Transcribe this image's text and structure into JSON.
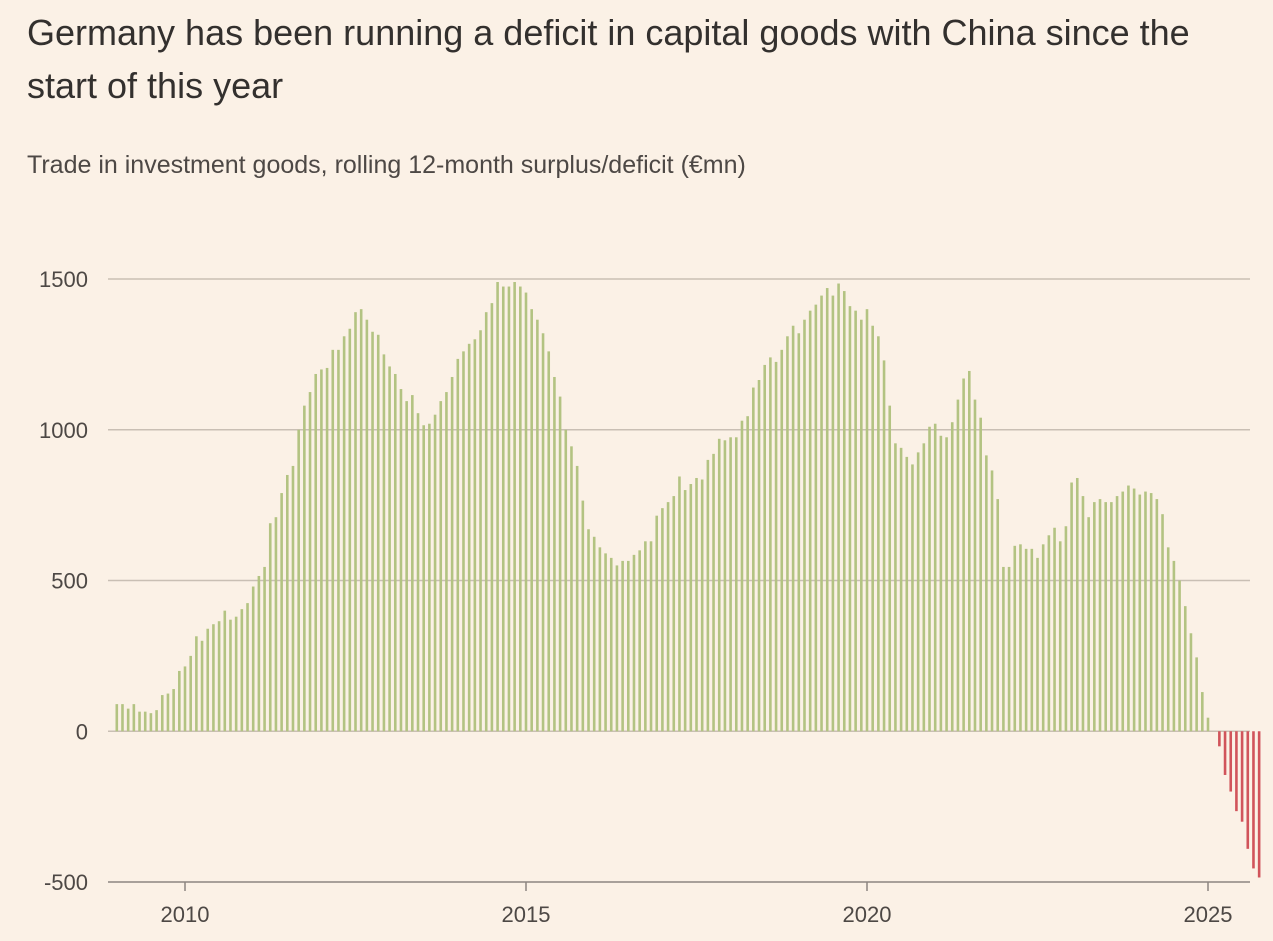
{
  "title": "Germany has been running a deficit in capital goods with China since the start of this year",
  "subtitle": "Trade in investment goods, rolling 12-month surplus/deficit (€mn)",
  "colors": {
    "positive": "#b3c382",
    "negative": "#d1545b",
    "gridline": "#c9bfb4",
    "axis": "#8c8580",
    "background": "#fbf1e6"
  },
  "chart_data": {
    "type": "bar",
    "title": "Germany has been running a deficit in capital goods with China since the start of this year",
    "subtitle": "Trade in investment goods, rolling 12-month surplus/deficit (€mn)",
    "x_start": "2009-01",
    "x_frequency": "monthly",
    "ylim": [
      -500,
      1500
    ],
    "yticks": [
      1500,
      1000,
      500,
      0,
      -500
    ],
    "ytick_labels": [
      "1500",
      "1000",
      "500",
      "0",
      "-500"
    ],
    "xticks": [
      "2010",
      "2015",
      "2020",
      "2025"
    ],
    "grid": true,
    "values": [
      90,
      90,
      75,
      90,
      65,
      65,
      60,
      70,
      120,
      125,
      140,
      200,
      215,
      250,
      315,
      300,
      340,
      355,
      365,
      400,
      370,
      380,
      405,
      425,
      480,
      515,
      545,
      690,
      710,
      790,
      850,
      880,
      1000,
      1080,
      1125,
      1185,
      1200,
      1205,
      1265,
      1265,
      1310,
      1335,
      1390,
      1400,
      1365,
      1325,
      1315,
      1250,
      1210,
      1185,
      1135,
      1095,
      1115,
      1055,
      1015,
      1020,
      1050,
      1095,
      1125,
      1175,
      1235,
      1260,
      1285,
      1300,
      1330,
      1390,
      1420,
      1490,
      1475,
      1475,
      1490,
      1475,
      1455,
      1400,
      1365,
      1320,
      1260,
      1175,
      1110,
      1000,
      945,
      880,
      765,
      670,
      645,
      610,
      590,
      575,
      550,
      565,
      565,
      585,
      600,
      630,
      630,
      715,
      740,
      760,
      780,
      845,
      800,
      820,
      840,
      835,
      900,
      920,
      970,
      965,
      975,
      975,
      1030,
      1045,
      1140,
      1165,
      1215,
      1240,
      1225,
      1265,
      1310,
      1345,
      1320,
      1365,
      1395,
      1415,
      1445,
      1470,
      1445,
      1485,
      1460,
      1410,
      1395,
      1365,
      1400,
      1345,
      1310,
      1230,
      1080,
      955,
      940,
      910,
      885,
      925,
      955,
      1010,
      1020,
      980,
      975,
      1025,
      1100,
      1170,
      1195,
      1100,
      1040,
      915,
      865,
      770,
      545,
      545,
      615,
      620,
      605,
      605,
      575,
      620,
      650,
      675,
      630,
      680,
      825,
      840,
      780,
      710,
      760,
      770,
      760,
      760,
      780,
      795,
      815,
      805,
      785,
      795,
      790,
      770,
      720,
      610,
      565,
      500,
      415,
      325,
      245,
      130,
      45,
      0,
      -50,
      -145,
      -200,
      -265,
      -300,
      -390,
      -455,
      -485
    ]
  }
}
